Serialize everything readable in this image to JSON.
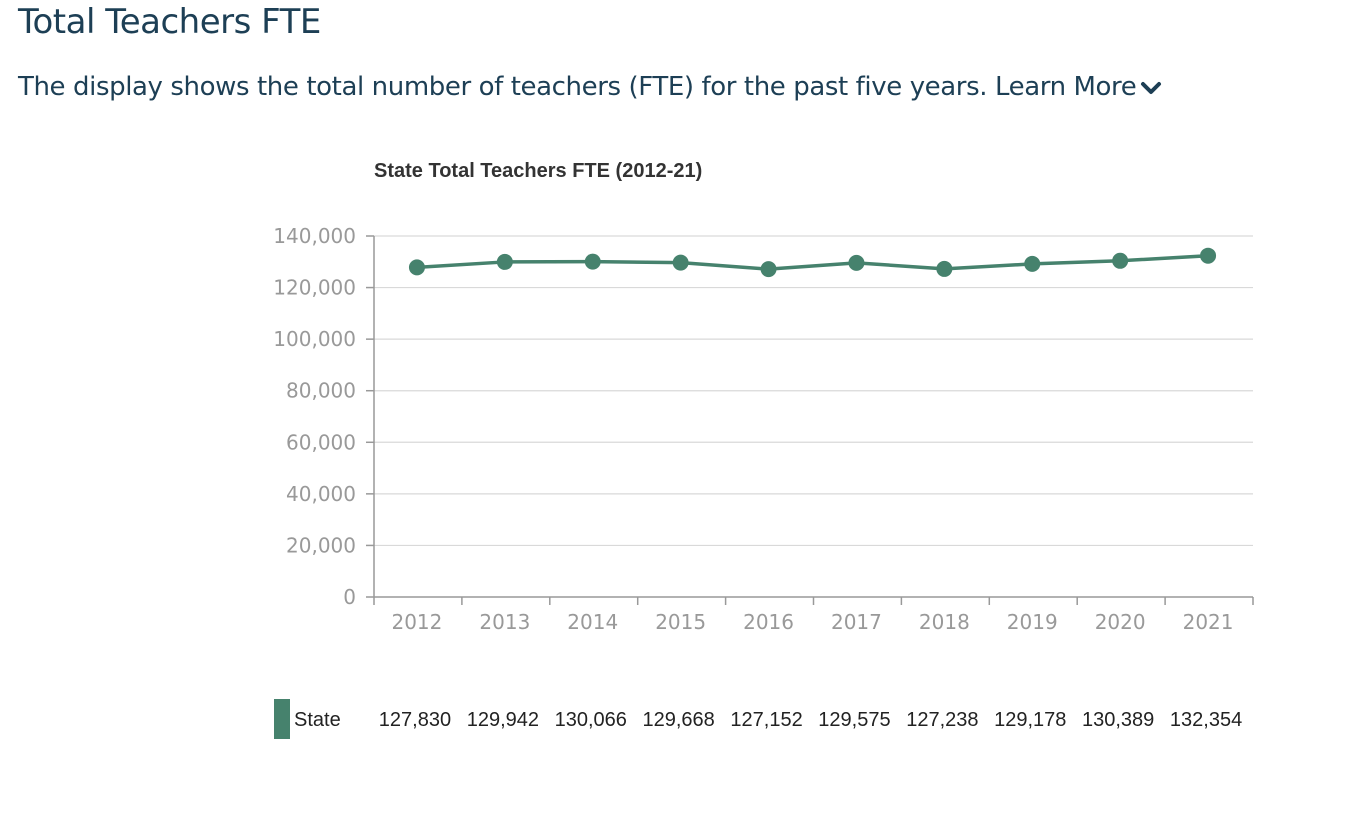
{
  "header": {
    "title": "Total Teachers FTE",
    "description": "The display shows the total number of teachers (FTE) for the past five years.",
    "learn_more_label": "Learn More"
  },
  "colors": {
    "heading": "#1d3f55",
    "series": "#46826d",
    "grid": "#d9d9d9",
    "axis": "#999999",
    "tick_text": "#999999"
  },
  "icons": {
    "learn_more": "chevron-down-icon"
  },
  "chart_data": {
    "type": "line",
    "title": "State Total Teachers FTE (2012-21)",
    "xlabel": "",
    "ylabel": "",
    "categories": [
      "2012",
      "2013",
      "2014",
      "2015",
      "2016",
      "2017",
      "2018",
      "2019",
      "2020",
      "2021"
    ],
    "yticks": [
      "0",
      "20,000",
      "40,000",
      "60,000",
      "80,000",
      "100,000",
      "120,000",
      "140,000"
    ],
    "ylim": [
      0,
      140000
    ],
    "grid": true,
    "legend": "bottom",
    "series": [
      {
        "name": "State",
        "values": [
          127830,
          129942,
          130066,
          129668,
          127152,
          129575,
          127238,
          129178,
          130389,
          132354
        ],
        "labels": [
          "127,830",
          "129,942",
          "130,066",
          "129,668",
          "127,152",
          "129,575",
          "127,238",
          "129,178",
          "130,389",
          "132,354"
        ]
      }
    ]
  }
}
